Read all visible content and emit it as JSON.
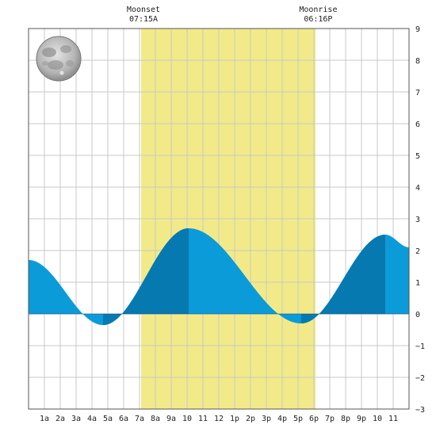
{
  "chart_data": {
    "type": "area",
    "x_tick_labels": [
      "1a",
      "2a",
      "3a",
      "4a",
      "5a",
      "6a",
      "7a",
      "8a",
      "9a",
      "10",
      "11",
      "12",
      "1p",
      "2p",
      "3p",
      "4p",
      "5p",
      "6p",
      "7p",
      "8p",
      "9p",
      "10",
      "11"
    ],
    "xlim": [
      0,
      24
    ],
    "ylim": [
      -3,
      9
    ],
    "y_ticks": [
      -3,
      -2,
      -1,
      0,
      1,
      2,
      3,
      4,
      5,
      6,
      7,
      8,
      9
    ],
    "y_axis_side": "right",
    "grid": true,
    "tide_extremes": [
      {
        "hour": 4.7,
        "height": -0.35
      },
      {
        "hour": 10.1,
        "height": 2.7
      },
      {
        "hour": 17.2,
        "height": -0.3
      },
      {
        "hour": 22.5,
        "height": 2.5
      }
    ],
    "tide_start": {
      "hour": 0,
      "height": 1.7
    },
    "tide_end": {
      "hour": 24,
      "height": 2.1
    },
    "moon_up": {
      "start_hour": 7.1,
      "end_hour": 18.1
    },
    "events": [
      {
        "name": "Moonset",
        "time": "07:15A",
        "hour": 7.25
      },
      {
        "name": "Moonrise",
        "time": "06:16P",
        "hour": 18.27
      }
    ],
    "moon_phase": "full-moon",
    "colors": {
      "band": "#f2ea88",
      "water_light": "#0b9bd9",
      "water_dark": "#0679b0",
      "grid": "#c8c8c8",
      "frame": "#555555",
      "axis": "#222222"
    }
  }
}
